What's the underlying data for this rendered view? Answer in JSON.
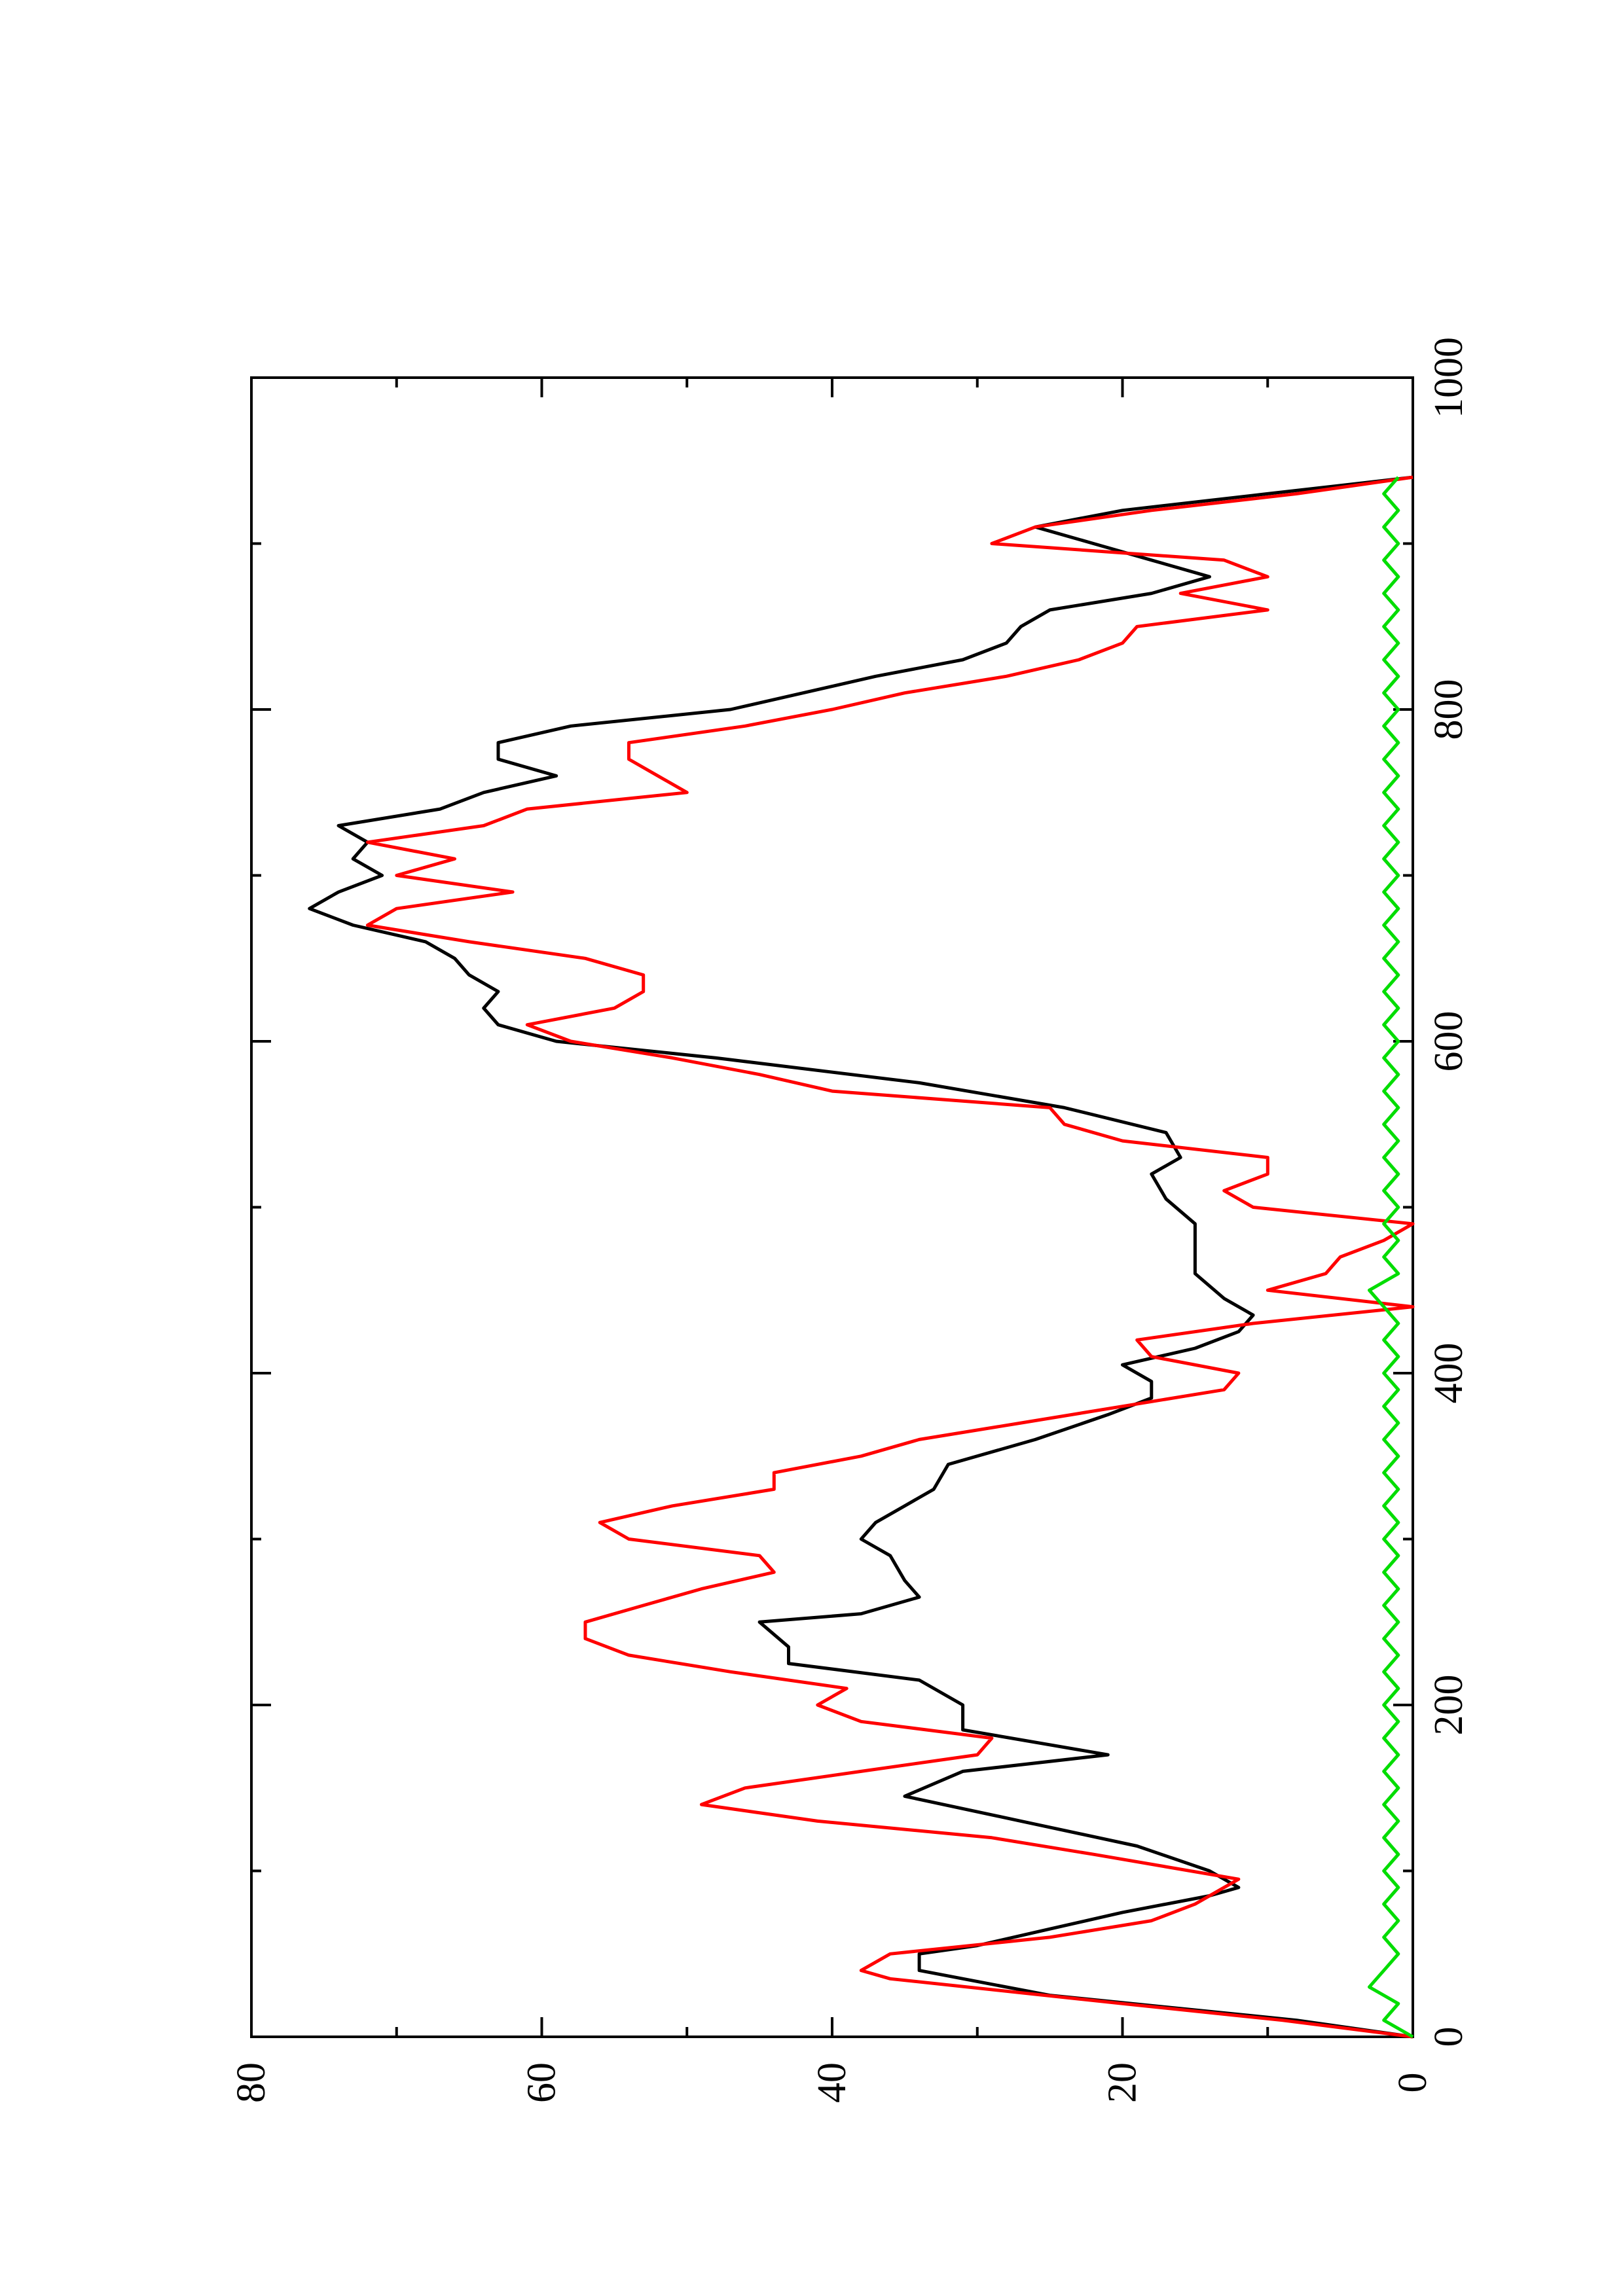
{
  "chart_data": {
    "type": "line",
    "orientation": "rotated-90-ccw",
    "title": "",
    "xlabel": "",
    "ylabel": "",
    "xlim": [
      0,
      1000
    ],
    "ylim": [
      0,
      80
    ],
    "x_ticks": [
      0,
      200,
      400,
      600,
      800,
      1000
    ],
    "x_tick_labels": [
      "0",
      "200",
      "400",
      "600",
      "800",
      "1000"
    ],
    "x_minor_ticks": [
      100,
      300,
      500,
      700,
      900
    ],
    "y_ticks": [
      0,
      20,
      40,
      60,
      80
    ],
    "y_tick_labels": [
      "0",
      "20",
      "40",
      "60",
      "80"
    ],
    "y_minor_ticks": [
      10,
      30,
      50,
      70
    ],
    "grid": false,
    "legend": "none",
    "series": [
      {
        "color": "#000000",
        "x": [
          0,
          10,
          25,
          40,
          50,
          55,
          65,
          75,
          85,
          90,
          100,
          115,
          130,
          145,
          160,
          170,
          185,
          200,
          215,
          225,
          235,
          250,
          255,
          265,
          275,
          290,
          300,
          310,
          320,
          330,
          345,
          360,
          375,
          385,
          395,
          405,
          415,
          425,
          435,
          445,
          460,
          475,
          490,
          505,
          520,
          530,
          545,
          560,
          575,
          590,
          600,
          610,
          620,
          630,
          640,
          650,
          660,
          670,
          680,
          690,
          700,
          710,
          720,
          730,
          740,
          750,
          760,
          770,
          780,
          790,
          800,
          810,
          820,
          830,
          840,
          850,
          860,
          870,
          880,
          890,
          900,
          910,
          920,
          930,
          940
        ],
        "y": [
          0,
          8,
          25,
          34,
          34,
          30,
          25,
          20,
          14,
          12,
          14,
          19,
          27,
          35,
          31,
          21,
          31,
          31,
          34,
          43,
          43,
          45,
          38,
          34,
          35,
          36,
          38,
          37,
          35,
          33,
          32,
          26,
          21,
          18,
          18,
          20,
          15,
          12,
          11,
          13,
          15,
          15,
          15,
          17,
          18,
          16,
          17,
          24,
          34,
          48,
          59,
          63,
          64,
          63,
          65,
          66,
          68,
          73,
          76,
          74,
          71,
          73,
          72,
          74,
          67,
          64,
          59,
          63,
          63,
          58,
          47,
          42,
          37,
          31,
          28,
          27,
          25,
          18,
          14,
          18,
          22,
          26,
          20,
          10,
          0
        ]
      },
      {
        "color": "#ff0000",
        "x": [
          0,
          10,
          20,
          35,
          40,
          50,
          60,
          70,
          80,
          90,
          95,
          110,
          120,
          130,
          140,
          150,
          160,
          170,
          180,
          190,
          200,
          210,
          220,
          230,
          240,
          250,
          260,
          270,
          280,
          290,
          300,
          310,
          320,
          330,
          340,
          350,
          360,
          370,
          380,
          390,
          400,
          410,
          420,
          430,
          440,
          450,
          460,
          470,
          480,
          490,
          500,
          510,
          520,
          530,
          540,
          550,
          560,
          570,
          580,
          590,
          600,
          610,
          620,
          630,
          640,
          650,
          660,
          670,
          680,
          690,
          700,
          710,
          720,
          730,
          740,
          750,
          760,
          770,
          780,
          790,
          800,
          810,
          820,
          830,
          840,
          850,
          860,
          870,
          880,
          890,
          900,
          910,
          920,
          930,
          940
        ],
        "y": [
          0,
          9,
          20,
          36,
          38,
          36,
          25,
          18,
          15,
          13,
          12,
          22,
          29,
          41,
          49,
          46,
          38,
          30,
          29,
          38,
          41,
          39,
          47,
          54,
          57,
          57,
          53,
          49,
          44,
          45,
          54,
          56,
          51,
          44,
          44,
          38,
          34,
          27,
          20,
          13,
          12,
          18,
          19,
          11,
          0,
          10,
          6,
          5,
          2,
          0,
          11,
          13,
          10,
          10,
          20,
          24,
          25,
          40,
          45,
          51,
          58,
          61,
          55,
          53,
          53,
          57,
          65,
          72,
          70,
          62,
          70,
          66,
          72,
          64,
          61,
          50,
          52,
          54,
          54,
          46,
          40,
          35,
          28,
          23,
          20,
          19,
          10,
          16,
          10,
          13,
          29,
          26,
          18,
          8,
          0
        ]
      },
      {
        "color": "#00dd00",
        "x": [
          0,
          10,
          20,
          30,
          40,
          50,
          60,
          70,
          80,
          90,
          100,
          110,
          120,
          130,
          140,
          150,
          160,
          170,
          180,
          190,
          200,
          210,
          220,
          230,
          240,
          250,
          260,
          270,
          280,
          290,
          300,
          310,
          320,
          330,
          340,
          350,
          360,
          370,
          380,
          390,
          400,
          410,
          420,
          430,
          440,
          450,
          460,
          470,
          480,
          490,
          500,
          510,
          520,
          530,
          540,
          550,
          560,
          570,
          580,
          590,
          600,
          610,
          620,
          630,
          640,
          650,
          660,
          670,
          680,
          690,
          700,
          710,
          720,
          730,
          740,
          750,
          760,
          770,
          780,
          790,
          800,
          810,
          820,
          830,
          840,
          850,
          860,
          870,
          880,
          890,
          900,
          910,
          920,
          930,
          940
        ],
        "y": [
          0,
          2,
          1,
          3,
          2,
          1,
          2,
          1,
          2,
          1,
          2,
          1,
          2,
          1,
          2,
          1,
          2,
          1,
          2,
          1,
          2,
          1,
          2,
          1,
          2,
          1,
          2,
          1,
          2,
          1,
          2,
          1,
          2,
          1,
          2,
          1,
          2,
          1,
          2,
          1,
          2,
          1,
          2,
          1,
          2,
          3,
          1,
          2,
          1,
          2,
          1,
          2,
          1,
          2,
          1,
          2,
          1,
          2,
          1,
          2,
          1,
          2,
          1,
          2,
          1,
          2,
          1,
          2,
          1,
          2,
          1,
          2,
          1,
          2,
          1,
          2,
          1,
          2,
          1,
          2,
          1,
          2,
          1,
          2,
          1,
          2,
          1,
          2,
          1,
          2,
          1,
          2,
          1,
          2,
          1
        ]
      }
    ]
  }
}
